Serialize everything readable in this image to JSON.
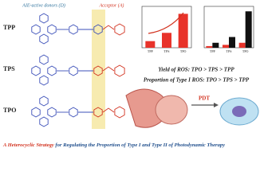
{
  "header": {
    "donors": "AIE-active donors (D)",
    "acceptor": "Acceptor (A)"
  },
  "molecules": [
    "TPP",
    "TPS",
    "TPO"
  ],
  "charts": [
    {
      "categories": [
        "TPP",
        "TPS",
        "TPO"
      ],
      "color": "#e8332a",
      "values": [
        1.6,
        3.6,
        8.2
      ],
      "ylim": [
        0,
        10
      ]
    },
    {
      "categories": [
        "TPP",
        "TPS",
        "TPO"
      ],
      "ylim": [
        0,
        10
      ],
      "series": [
        {
          "color": "#e8332a",
          "values": [
            0.4,
            0.7,
            1.2
          ]
        },
        {
          "color": "#111111",
          "values": [
            1.2,
            2.6,
            8.8
          ]
        }
      ]
    }
  ],
  "statements": [
    "Yield of ROS: TPO > TPS > TPP",
    "Proportion of Type I ROS: TPO > TPS > TPP"
  ],
  "therapy": "PDT",
  "footer": {
    "highlight": "A Heterocyclic Strategy",
    "rest": " for Regulating the Proportion of Type I and Type II of Photodynamic Therapy"
  }
}
